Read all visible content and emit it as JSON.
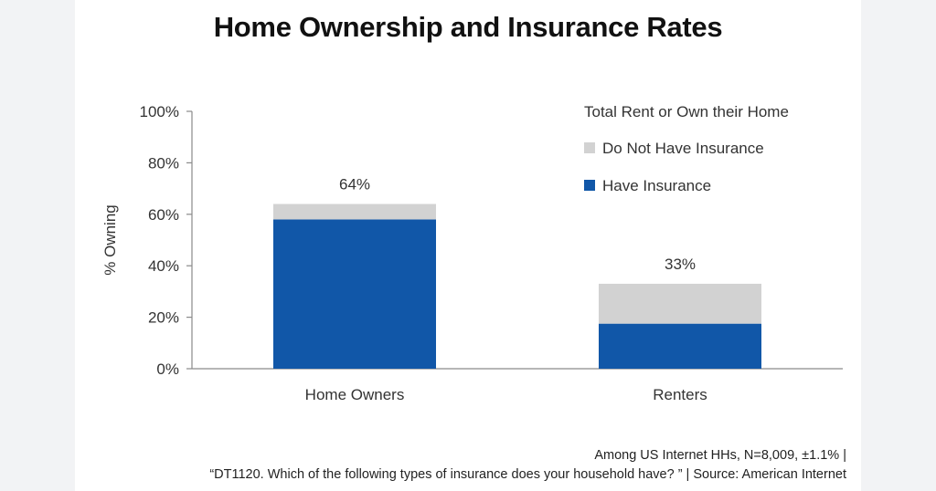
{
  "title": "Home Ownership and Insurance Rates",
  "footnote_line1": "Among US Internet HHs, N=8,009, ±1.1% |",
  "footnote_line2": "“DT1120.   Which of the following types of insurance does your household have? ” | Source: American Internet",
  "colors": {
    "have_insurance": "#1157a8",
    "no_insurance": "#d2d2d2",
    "axis": "#8a8a8a"
  },
  "chart_data": {
    "type": "bar",
    "stacked": true,
    "title": "Home Ownership and Insurance Rates",
    "ylabel": "% Owning",
    "xlabel": "",
    "ylim": [
      0,
      100
    ],
    "yticks": [
      "0%",
      "20%",
      "40%",
      "60%",
      "80%",
      "100%"
    ],
    "categories": [
      "Home Owners",
      "Renters"
    ],
    "totals": [
      64,
      33
    ],
    "total_labels": [
      "64%",
      "33%"
    ],
    "legend_title": "Total Rent or Own their Home",
    "legend_position": "top-right",
    "series": [
      {
        "name": "Have Insurance",
        "values": [
          58,
          17.5
        ]
      },
      {
        "name": "Do Not Have Insurance",
        "values": [
          6,
          15.5
        ]
      }
    ]
  }
}
